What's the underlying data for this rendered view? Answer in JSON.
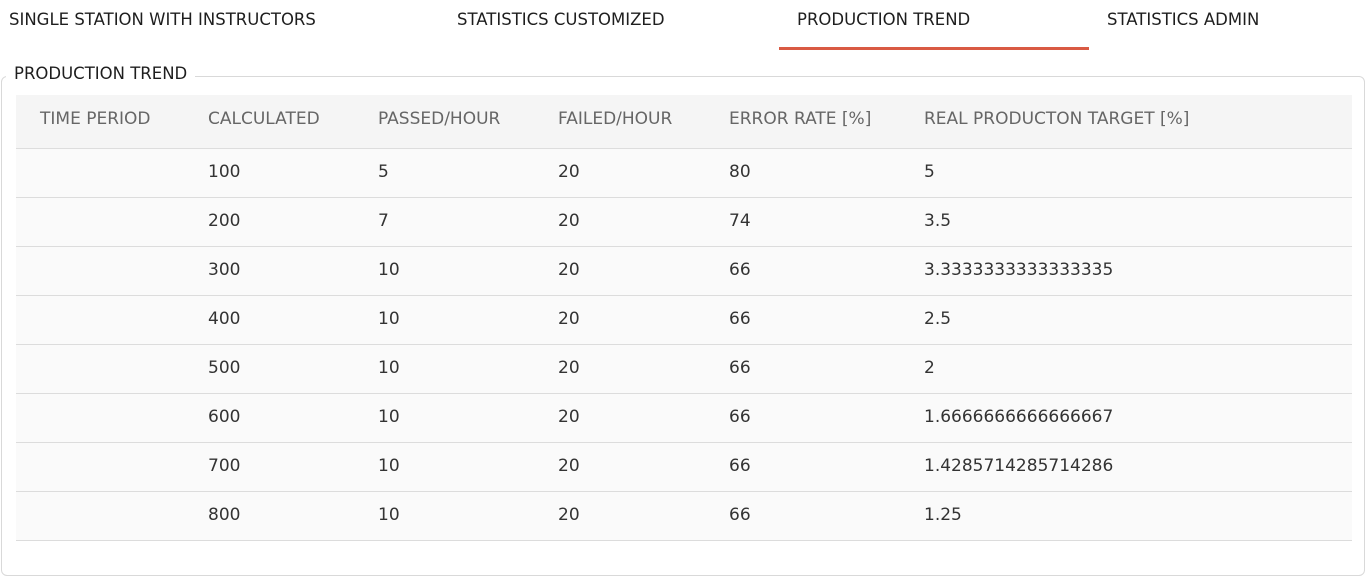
{
  "tabs": [
    {
      "label": "SINGLE STATION WITH  INSTRUCTORS"
    },
    {
      "label": "STATISTICS CUSTOMIZED"
    },
    {
      "label": "PRODUCTION TREND",
      "active": true
    },
    {
      "label": "STATISTICS ADMIN"
    }
  ],
  "section": {
    "title": "PRODUCTION TREND"
  },
  "table": {
    "columns": [
      "TIME PERIOD",
      "CALCULATED",
      "PASSED/HOUR",
      "FAILED/HOUR",
      "ERROR RATE [%]",
      "REAL PRODUCTON TARGET [%]"
    ],
    "rows": [
      [
        "",
        "100",
        "5",
        "20",
        "80",
        "5"
      ],
      [
        "",
        "200",
        "7",
        "20",
        "74",
        "3.5"
      ],
      [
        "",
        "300",
        "10",
        "20",
        "66",
        "3.3333333333333335"
      ],
      [
        "",
        "400",
        "10",
        "20",
        "66",
        "2.5"
      ],
      [
        "",
        "500",
        "10",
        "20",
        "66",
        "2"
      ],
      [
        "",
        "600",
        "10",
        "20",
        "66",
        "1.6666666666666667"
      ],
      [
        "",
        "700",
        "10",
        "20",
        "66",
        "1.4285714285714286"
      ],
      [
        "",
        "800",
        "10",
        "20",
        "66",
        "1.25"
      ]
    ]
  },
  "colors": {
    "active_tab_underline": "#d95a43",
    "header_bg": "#f5f5f5",
    "row_bg": "#fafafa"
  }
}
